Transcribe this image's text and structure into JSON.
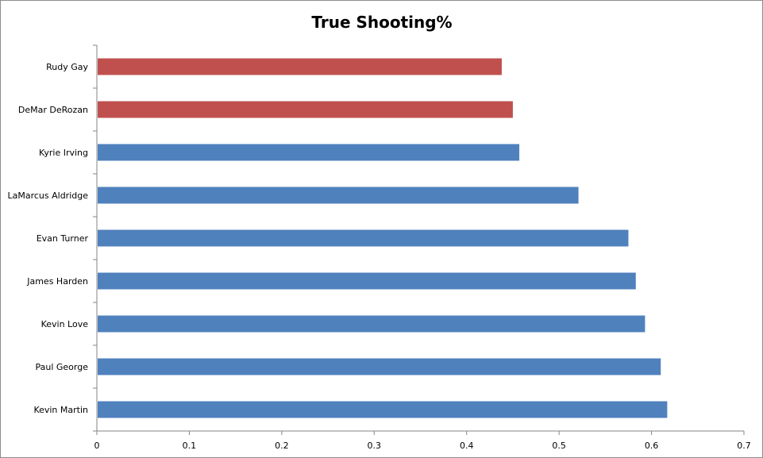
{
  "chart_data": {
    "type": "bar",
    "orientation": "horizontal",
    "title": "True Shooting%",
    "xlabel": "",
    "ylabel": "",
    "xlim": [
      0,
      0.7
    ],
    "x_ticks": [
      "0",
      "0.1",
      "0.2",
      "0.3",
      "0.4",
      "0.5",
      "0.6",
      "0.7"
    ],
    "grid": false,
    "legend": "none",
    "categories": [
      "Kevin Martin",
      "Paul George",
      "Kevin Love",
      "James Harden",
      "Evan Turner",
      "LaMarcus Aldridge",
      "Kyrie Irving",
      "DeMar DeRozan",
      "Rudy Gay"
    ],
    "values": [
      0.617,
      0.61,
      0.593,
      0.583,
      0.575,
      0.521,
      0.457,
      0.45,
      0.438
    ],
    "bar_colors": [
      "#4f81bd",
      "#4f81bd",
      "#4f81bd",
      "#4f81bd",
      "#4f81bd",
      "#4f81bd",
      "#4f81bd",
      "#c0504d",
      "#c0504d"
    ]
  }
}
